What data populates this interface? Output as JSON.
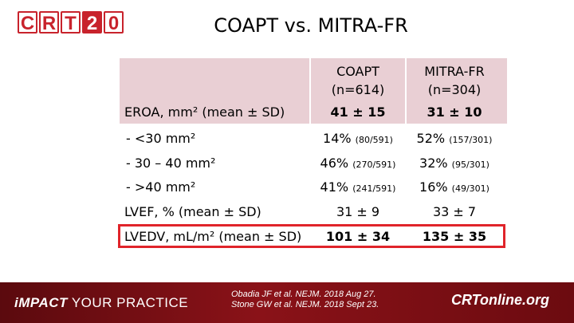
{
  "logo": {
    "letters": [
      "C",
      "R",
      "T",
      "2",
      "0"
    ]
  },
  "title": "COAPT vs. MITRA-FR",
  "table": {
    "headers": {
      "col1_line1": "COAPT",
      "col1_line2": "(n=614)",
      "col2_line1": "MITRA-FR",
      "col2_line2": "(n=304)"
    },
    "rows": [
      {
        "label": "EROA, mm² (mean ± SD)",
        "c1": "41 ± 15",
        "c1_small": "",
        "c2": "31 ± 10",
        "c2_small": ""
      },
      {
        "label": "- <30 mm²",
        "c1": "14%",
        "c1_small": "(80/591)",
        "c2": "52%",
        "c2_small": "(157/301)"
      },
      {
        "label": "- 30 – 40 mm²",
        "c1": "46%",
        "c1_small": "(270/591)",
        "c2": "32%",
        "c2_small": "(95/301)"
      },
      {
        "label": "- >40 mm²",
        "c1": "41%",
        "c1_small": "(241/591)",
        "c2": "16%",
        "c2_small": "(49/301)"
      },
      {
        "label": "LVEF, % (mean ± SD)",
        "c1": "31 ± 9",
        "c1_small": "",
        "c2": "33 ± 7",
        "c2_small": ""
      },
      {
        "label": "LVEDV, mL/m² (mean ± SD)",
        "c1": "101 ± 34",
        "c1_small": "",
        "c2": "135 ± 35",
        "c2_small": ""
      }
    ]
  },
  "footer": {
    "tagline_italic": "iMPACT",
    "tagline_rest": " YOUR PRACTICE",
    "citation_line1": "Obadia JF et al. NEJM. 2018 Aug 27.",
    "citation_line2": "Stone GW et al. NEJM. 2018 Sept 23.",
    "site": "CRTonline.org"
  },
  "colors": {
    "brand_red": "#c8232c",
    "band_pink": "#e9cfd4",
    "highlight_red": "#e0242a",
    "footer_dark_red": "#7a0f15"
  }
}
